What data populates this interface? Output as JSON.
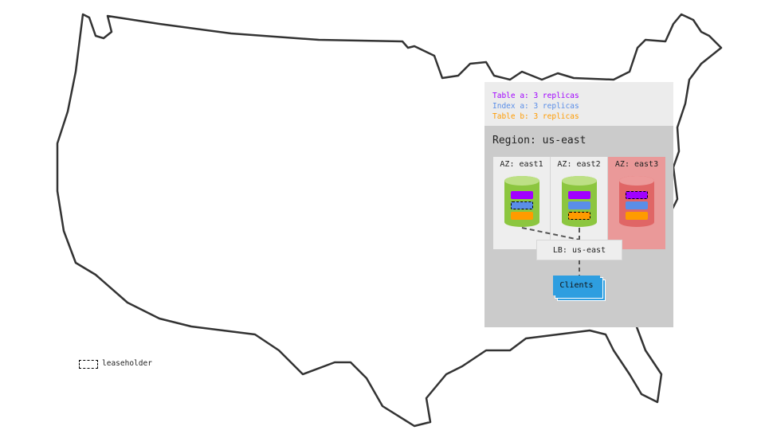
{
  "legend": {
    "items": [
      {
        "text": "Table a: 3 replicas",
        "color": "#a100ff"
      },
      {
        "text": "Index a: 3 replicas",
        "color": "#5a8ee8"
      },
      {
        "text": "Table b: 3 replicas",
        "color": "#ff9b00"
      }
    ]
  },
  "region": {
    "title": "Region: us-east"
  },
  "azs": [
    {
      "label": "AZ: east1",
      "status": "healthy",
      "leaseholder": "Index a"
    },
    {
      "label": "AZ: east2",
      "status": "healthy",
      "leaseholder": "Table b"
    },
    {
      "label": "AZ: east3",
      "status": "failed",
      "leaseholder": "Table a"
    }
  ],
  "lb": {
    "label": "LB: us-east"
  },
  "clients": {
    "label": "Clients"
  },
  "key": {
    "label": "leaseholder"
  },
  "colors": {
    "table_a": "#a100ff",
    "index_a": "#5a8ee8",
    "table_b": "#ff9b00",
    "healthy": "#8cc63f",
    "failed": "#e06666"
  }
}
